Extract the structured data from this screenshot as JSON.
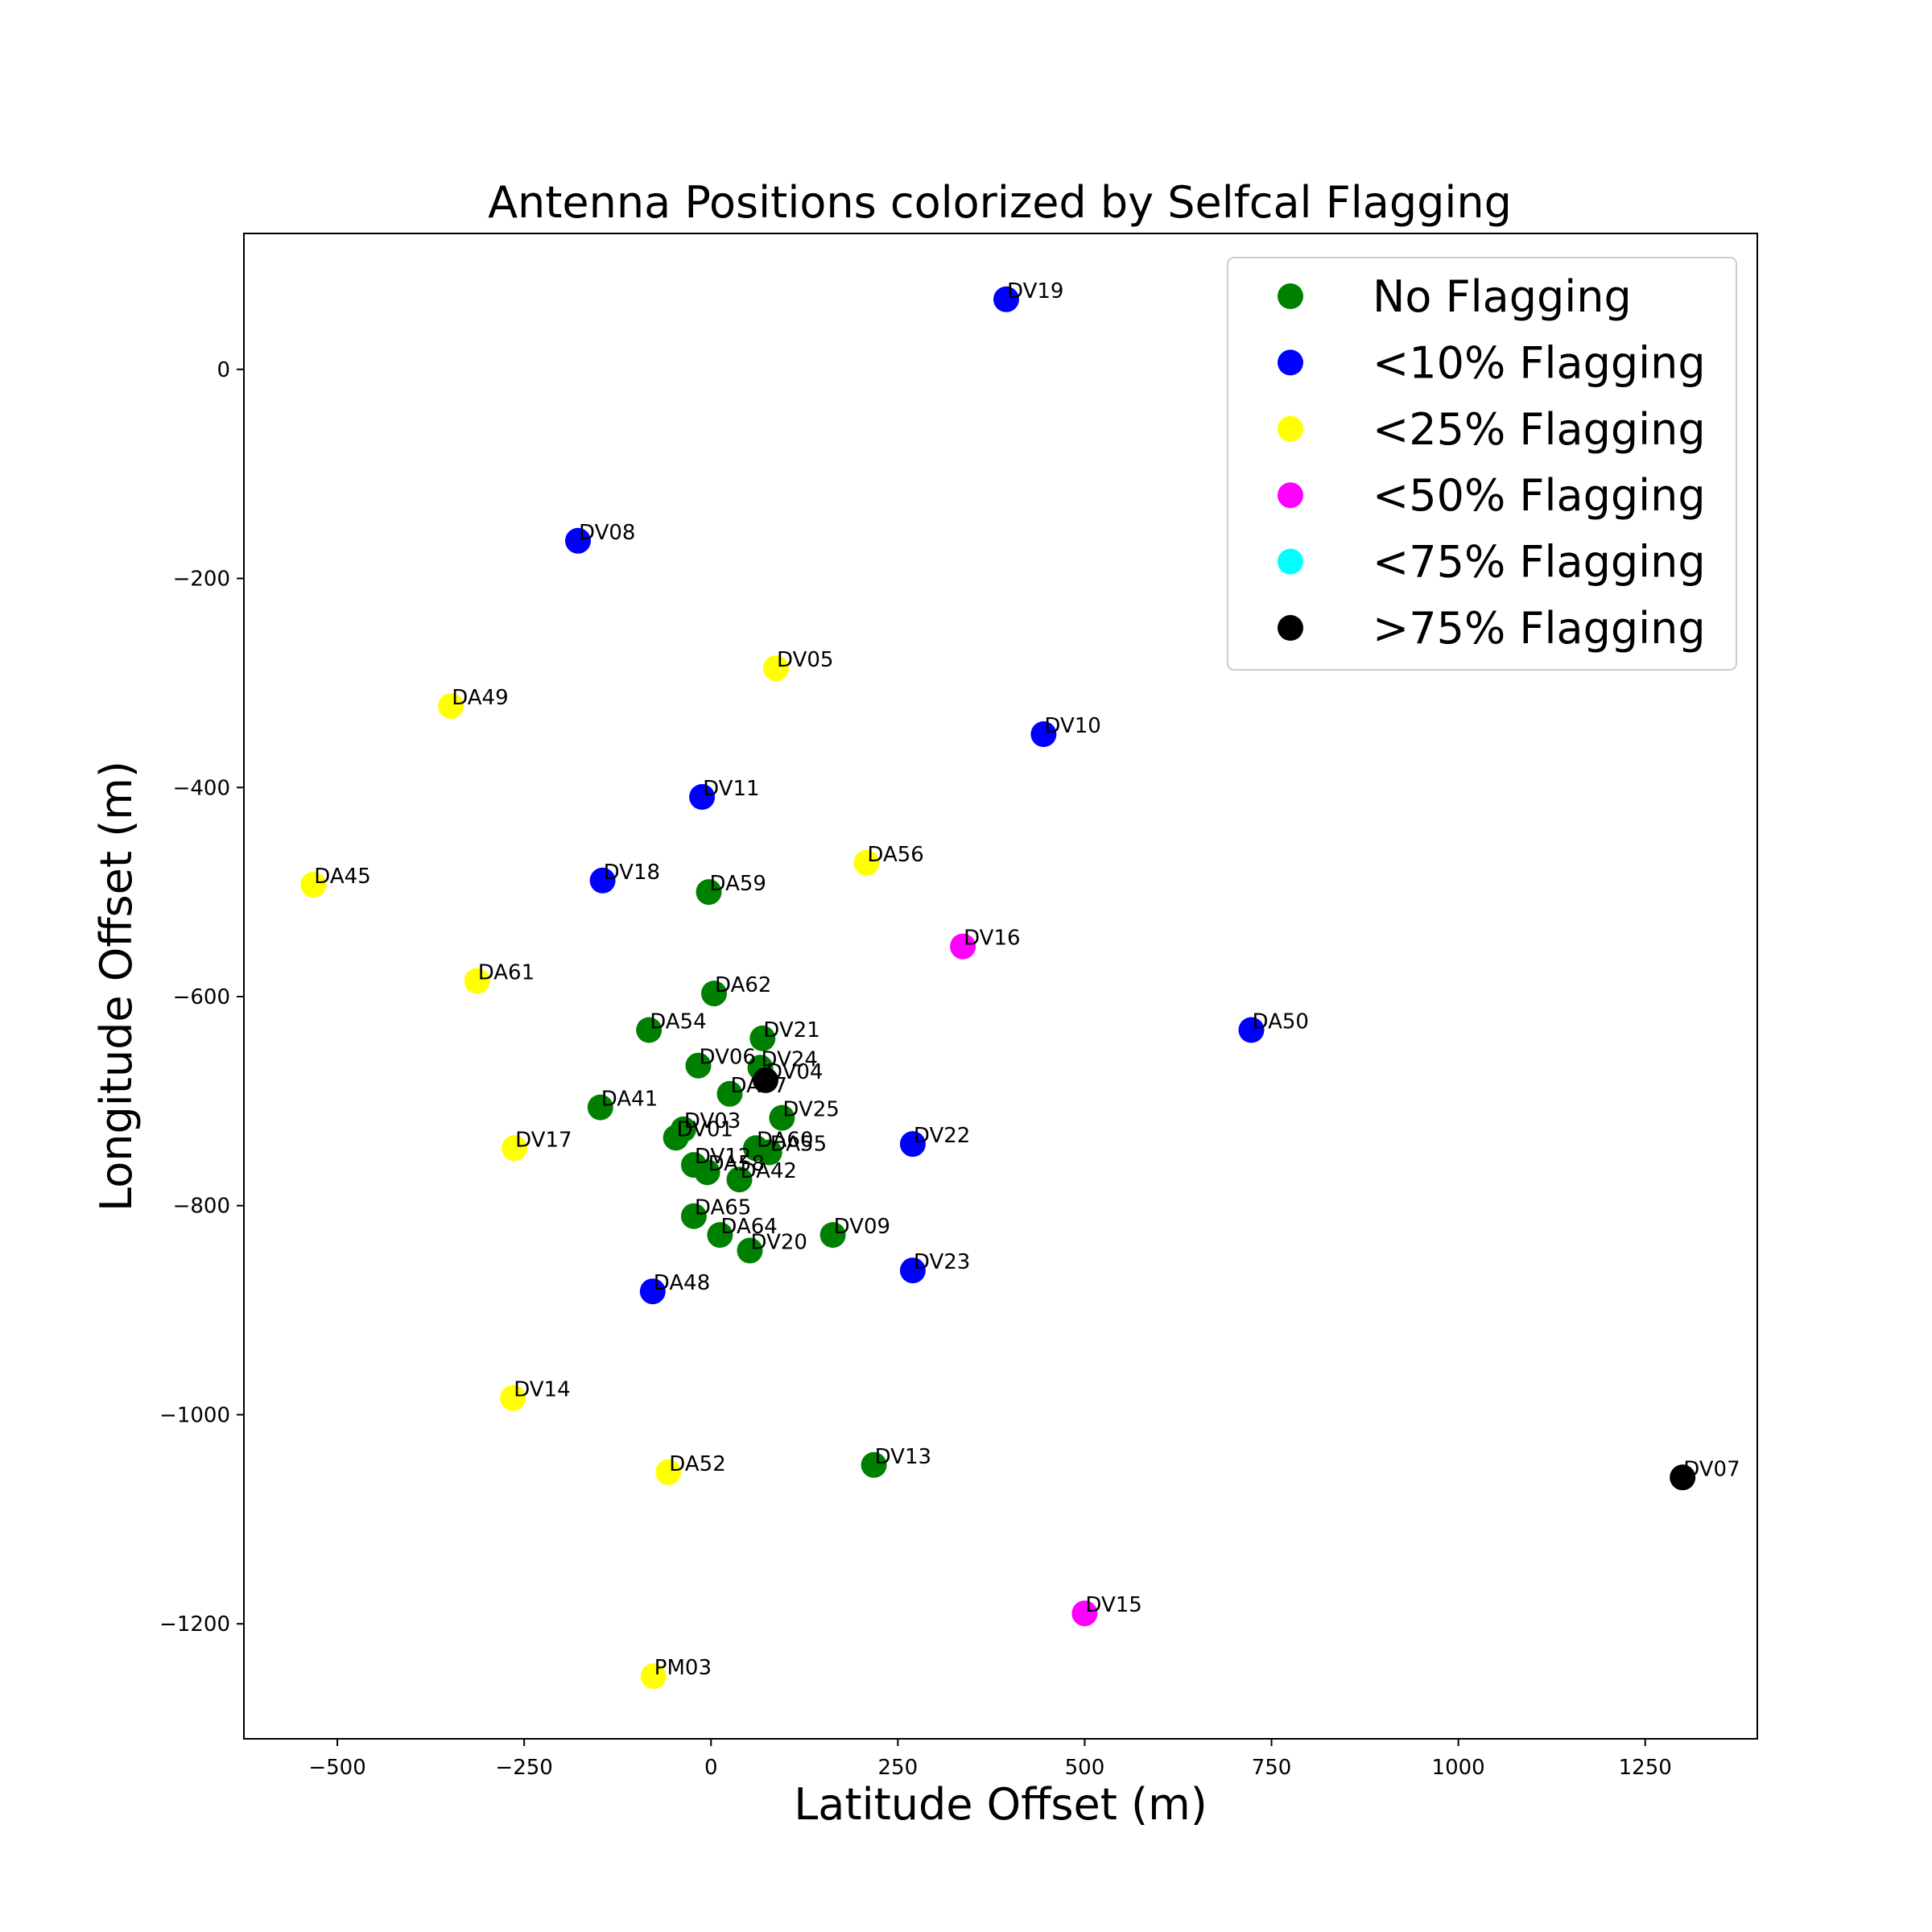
{
  "chart_data": {
    "type": "scatter",
    "title": "Antenna Positions colorized by Selfcal Flagging",
    "xlabel": "Latitude Offset (m)",
    "ylabel": "Longitude Offset (m)",
    "xlim": [
      -625,
      1400
    ],
    "ylim": [
      -1310,
      130
    ],
    "xticks": [
      -500,
      -250,
      0,
      250,
      500,
      750,
      1000,
      1250
    ],
    "xtick_labels": [
      "−500",
      "−250",
      "0",
      "250",
      "500",
      "750",
      "1000",
      "1250"
    ],
    "yticks": [
      0,
      -200,
      -400,
      -600,
      -800,
      -1000,
      -1200
    ],
    "ytick_labels": [
      "0",
      "−200",
      "−400",
      "−600",
      "−800",
      "−1000",
      "−1200"
    ],
    "grid": false,
    "legend_position": "top-right",
    "legend": [
      {
        "label": "No Flagging",
        "color": "#008000"
      },
      {
        "label": "<10% Flagging",
        "color": "#0000ff"
      },
      {
        "label": "<25% Flagging",
        "color": "#ffff00"
      },
      {
        "label": "<50% Flagging",
        "color": "#ff00ff"
      },
      {
        "label": "<75% Flagging",
        "color": "#00ffff"
      },
      {
        "label": ">75% Flagging",
        "color": "#000000"
      }
    ],
    "points": [
      {
        "name": "DV19",
        "x": 395,
        "y": 67,
        "color": "#0000ff"
      },
      {
        "name": "DV08",
        "x": -178,
        "y": -164,
        "color": "#0000ff"
      },
      {
        "name": "DV05",
        "x": 87,
        "y": -286,
        "color": "#ffff00"
      },
      {
        "name": "DA49",
        "x": -348,
        "y": -322,
        "color": "#ffff00"
      },
      {
        "name": "DV10",
        "x": 445,
        "y": -349,
        "color": "#0000ff"
      },
      {
        "name": "DV11",
        "x": -12,
        "y": -409,
        "color": "#0000ff"
      },
      {
        "name": "DA56",
        "x": 208,
        "y": -472,
        "color": "#ffff00"
      },
      {
        "name": "DA45",
        "x": -532,
        "y": -493,
        "color": "#ffff00"
      },
      {
        "name": "DV18",
        "x": -145,
        "y": -489,
        "color": "#0000ff"
      },
      {
        "name": "DA59",
        "x": -3,
        "y": -500,
        "color": "#008000"
      },
      {
        "name": "DV16",
        "x": 337,
        "y": -552,
        "color": "#ff00ff"
      },
      {
        "name": "DA61",
        "x": -313,
        "y": -585,
        "color": "#ffff00"
      },
      {
        "name": "DA62",
        "x": 4,
        "y": -597,
        "color": "#008000"
      },
      {
        "name": "DA54",
        "x": -83,
        "y": -632,
        "color": "#008000"
      },
      {
        "name": "DA50",
        "x": 723,
        "y": -632,
        "color": "#0000ff"
      },
      {
        "name": "DV21",
        "x": 69,
        "y": -640,
        "color": "#008000"
      },
      {
        "name": "DV06",
        "x": -17,
        "y": -666,
        "color": "#008000"
      },
      {
        "name": "DV24",
        "x": 66,
        "y": -668,
        "color": "#008000"
      },
      {
        "name": "DV04",
        "x": 73,
        "y": -680,
        "color": "#000000"
      },
      {
        "name": "DA47",
        "x": 25,
        "y": -693,
        "color": "#008000"
      },
      {
        "name": "DA41",
        "x": -148,
        "y": -706,
        "color": "#008000"
      },
      {
        "name": "DV25",
        "x": 95,
        "y": -716,
        "color": "#008000"
      },
      {
        "name": "DV03",
        "x": -37,
        "y": -727,
        "color": "#008000"
      },
      {
        "name": "DV01",
        "x": -47,
        "y": -735,
        "color": "#008000"
      },
      {
        "name": "DV17",
        "x": -263,
        "y": -745,
        "color": "#ffff00"
      },
      {
        "name": "DV22",
        "x": 270,
        "y": -741,
        "color": "#0000ff"
      },
      {
        "name": "DA60",
        "x": 60,
        "y": -745,
        "color": "#008000"
      },
      {
        "name": "DA55",
        "x": 78,
        "y": -749,
        "color": "#008000"
      },
      {
        "name": "DV12",
        "x": -23,
        "y": -761,
        "color": "#008000"
      },
      {
        "name": "DA58",
        "x": -5,
        "y": -768,
        "color": "#008000"
      },
      {
        "name": "DA42",
        "x": 38,
        "y": -775,
        "color": "#008000"
      },
      {
        "name": "DA65",
        "x": -23,
        "y": -810,
        "color": "#008000"
      },
      {
        "name": "DV09",
        "x": 163,
        "y": -828,
        "color": "#008000"
      },
      {
        "name": "DA64",
        "x": 12,
        "y": -828,
        "color": "#008000"
      },
      {
        "name": "DV20",
        "x": 52,
        "y": -843,
        "color": "#008000"
      },
      {
        "name": "DV23",
        "x": 270,
        "y": -862,
        "color": "#0000ff"
      },
      {
        "name": "DA48",
        "x": -78,
        "y": -882,
        "color": "#0000ff"
      },
      {
        "name": "DV14",
        "x": -265,
        "y": -984,
        "color": "#ffff00"
      },
      {
        "name": "DV13",
        "x": 218,
        "y": -1048,
        "color": "#008000"
      },
      {
        "name": "DA52",
        "x": -57,
        "y": -1055,
        "color": "#ffff00"
      },
      {
        "name": "DV07",
        "x": 1300,
        "y": -1060,
        "color": "#000000"
      },
      {
        "name": "DV15",
        "x": 500,
        "y": -1190,
        "color": "#ff00ff"
      },
      {
        "name": "PM03",
        "x": -77,
        "y": -1250,
        "color": "#ffff00"
      }
    ]
  }
}
